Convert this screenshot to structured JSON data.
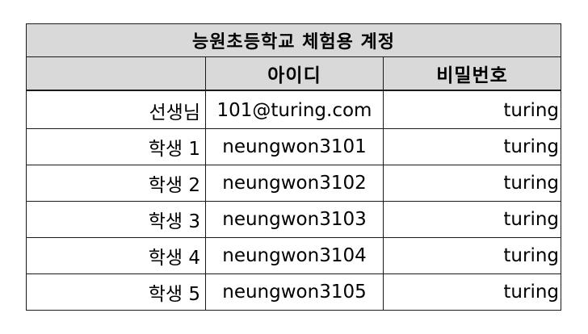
{
  "sheet": {
    "title": "능원초등학교 체험용 계정",
    "columns": [
      "",
      "아이디",
      "비밀번호"
    ],
    "rows": [
      {
        "name": "선생님",
        "id": "101@turing.com",
        "password": "turing"
      },
      {
        "name": "학생 1",
        "id": "neungwon3101",
        "password": "turing"
      },
      {
        "name": "학생 2",
        "id": "neungwon3102",
        "password": "turing"
      },
      {
        "name": "학생 3",
        "id": "neungwon3103",
        "password": "turing"
      },
      {
        "name": "학생 4",
        "id": "neungwon3104",
        "password": "turing"
      },
      {
        "name": "학생 5",
        "id": "neungwon3105",
        "password": "turing"
      }
    ]
  },
  "colors": {
    "header_fill": "#d9d9d9",
    "border": "#1a1a1a",
    "text": "#000000"
  }
}
